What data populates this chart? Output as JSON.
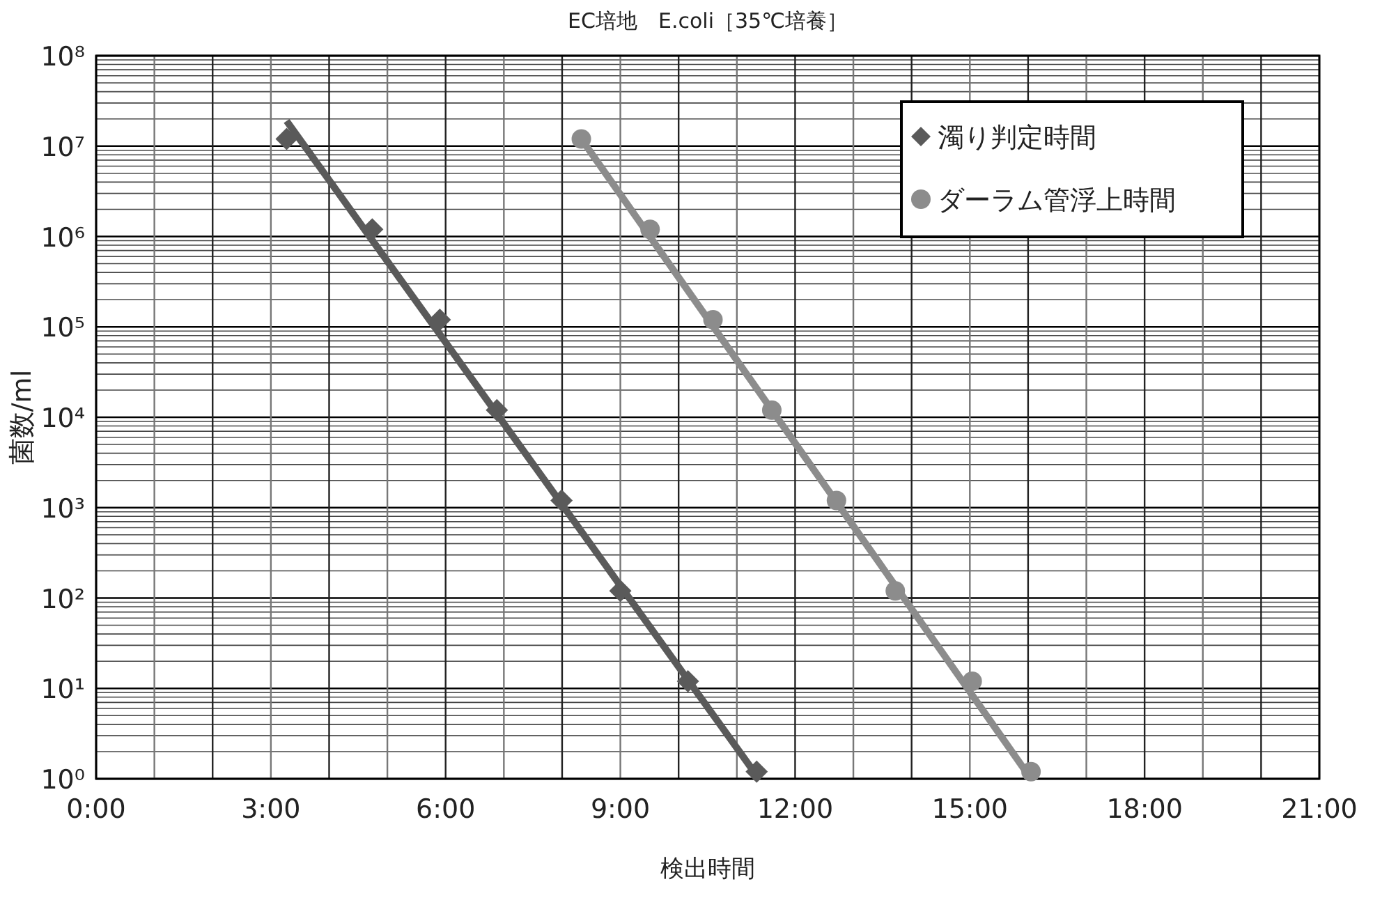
{
  "chart_data": {
    "type": "scatter",
    "title": "EC培地　E.coli［35℃培養］",
    "xlabel": "検出時間",
    "ylabel": "菌数/ml",
    "log": "y",
    "grid": true,
    "legend": "top right",
    "xlim": [
      0,
      21
    ],
    "xticks": [
      {
        "value": 0,
        "label": "0:00"
      },
      {
        "value": 1,
        "label": null
      },
      {
        "value": 2,
        "label": null
      },
      {
        "value": 3,
        "label": "3:00"
      },
      {
        "value": 4,
        "label": null
      },
      {
        "value": 5,
        "label": null
      },
      {
        "value": 6,
        "label": "6:00"
      },
      {
        "value": 7,
        "label": null
      },
      {
        "value": 8,
        "label": null
      },
      {
        "value": 9,
        "label": "9:00"
      },
      {
        "value": 10,
        "label": null
      },
      {
        "value": 11,
        "label": null
      },
      {
        "value": 12,
        "label": "12:00"
      },
      {
        "value": 13,
        "label": null
      },
      {
        "value": 14,
        "label": null
      },
      {
        "value": 15,
        "label": "15:00"
      },
      {
        "value": 16,
        "label": null
      },
      {
        "value": 17,
        "label": null
      },
      {
        "value": 18,
        "label": "18:00"
      },
      {
        "value": 19,
        "label": null
      },
      {
        "value": 20,
        "label": null
      },
      {
        "value": 21,
        "label": "21:00"
      }
    ],
    "ylim": [
      1,
      100000000
    ],
    "yticks": [
      {
        "value": 1,
        "label": "10⁰"
      },
      {
        "value": 2,
        "label": null
      },
      {
        "value": 3,
        "label": null
      },
      {
        "value": 4,
        "label": null
      },
      {
        "value": 5,
        "label": null
      },
      {
        "value": 6,
        "label": null
      },
      {
        "value": 7,
        "label": null
      },
      {
        "value": 8,
        "label": null
      },
      {
        "value": 9,
        "label": null
      },
      {
        "value": 10,
        "label": "10¹"
      },
      {
        "value": 20,
        "label": null
      },
      {
        "value": 30,
        "label": null
      },
      {
        "value": 40,
        "label": null
      },
      {
        "value": 50,
        "label": null
      },
      {
        "value": 60,
        "label": null
      },
      {
        "value": 70,
        "label": null
      },
      {
        "value": 80,
        "label": null
      },
      {
        "value": 90,
        "label": null
      },
      {
        "value": 100,
        "label": "10²"
      },
      {
        "value": 200,
        "label": null
      },
      {
        "value": 300,
        "label": null
      },
      {
        "value": 400,
        "label": null
      },
      {
        "value": 500,
        "label": null
      },
      {
        "value": 600,
        "label": null
      },
      {
        "value": 700,
        "label": null
      },
      {
        "value": 800,
        "label": null
      },
      {
        "value": 900,
        "label": null
      },
      {
        "value": 1000,
        "label": "10³"
      },
      {
        "value": 2000,
        "label": null
      },
      {
        "value": 3000,
        "label": null
      },
      {
        "value": 4000,
        "label": null
      },
      {
        "value": 5000,
        "label": null
      },
      {
        "value": 6000,
        "label": null
      },
      {
        "value": 7000,
        "label": null
      },
      {
        "value": 8000,
        "label": null
      },
      {
        "value": 9000,
        "label": null
      },
      {
        "value": 10000,
        "label": "10⁴"
      },
      {
        "value": 20000,
        "label": null
      },
      {
        "value": 30000,
        "label": null
      },
      {
        "value": 40000,
        "label": null
      },
      {
        "value": 50000,
        "label": null
      },
      {
        "value": 60000,
        "label": null
      },
      {
        "value": 70000,
        "label": null
      },
      {
        "value": 80000,
        "label": null
      },
      {
        "value": 90000,
        "label": null
      },
      {
        "value": 100000,
        "label": "10⁵"
      },
      {
        "value": 200000,
        "label": null
      },
      {
        "value": 300000,
        "label": null
      },
      {
        "value": 400000,
        "label": null
      },
      {
        "value": 500000,
        "label": null
      },
      {
        "value": 600000,
        "label": null
      },
      {
        "value": 700000,
        "label": null
      },
      {
        "value": 800000,
        "label": null
      },
      {
        "value": 900000,
        "label": null
      },
      {
        "value": 1000000,
        "label": "10⁶"
      },
      {
        "value": 2000000,
        "label": null
      },
      {
        "value": 3000000,
        "label": null
      },
      {
        "value": 4000000,
        "label": null
      },
      {
        "value": 5000000,
        "label": null
      },
      {
        "value": 6000000,
        "label": null
      },
      {
        "value": 7000000,
        "label": null
      },
      {
        "value": 8000000,
        "label": null
      },
      {
        "value": 9000000,
        "label": null
      },
      {
        "value": 10000000,
        "label": "10⁷"
      },
      {
        "value": 20000000,
        "label": null
      },
      {
        "value": 30000000,
        "label": null
      },
      {
        "value": 40000000,
        "label": null
      },
      {
        "value": 50000000,
        "label": null
      },
      {
        "value": 60000000,
        "label": null
      },
      {
        "value": 70000000,
        "label": null
      },
      {
        "value": 80000000,
        "label": null
      },
      {
        "value": 90000000,
        "label": null
      },
      {
        "value": 100000000,
        "label": "10⁸"
      }
    ],
    "series": [
      {
        "type": "line",
        "color": "#5a5a5a",
        "line_style": "solid",
        "marker": "none",
        "x": [
          3.27,
          11.38
        ],
        "values": [
          19000000,
          1
        ]
      },
      {
        "type": "line",
        "color": "#8c8c8c",
        "line_style": "solid",
        "marker": "none",
        "x": [
          8.33,
          16.05
        ],
        "values": [
          12000000,
          1
        ]
      },
      {
        "name": "濁り判定時間",
        "color": "#5a5a5a",
        "marker": "diamond",
        "x": [
          3.27,
          4.74,
          5.9,
          6.88,
          7.99,
          9.0,
          10.16,
          11.34
        ],
        "values": [
          12000000,
          1200000,
          120000,
          12000,
          1200,
          120,
          12,
          1.2
        ]
      },
      {
        "name": "ダーラム管浮上時間",
        "color": "#8c8c8c",
        "marker": "circle",
        "x": [
          8.33,
          9.51,
          10.59,
          11.6,
          12.71,
          13.72,
          15.04,
          16.05
        ],
        "values": [
          12000000,
          1200000,
          120000,
          12000,
          1200,
          120,
          12,
          1.2
        ]
      }
    ]
  }
}
